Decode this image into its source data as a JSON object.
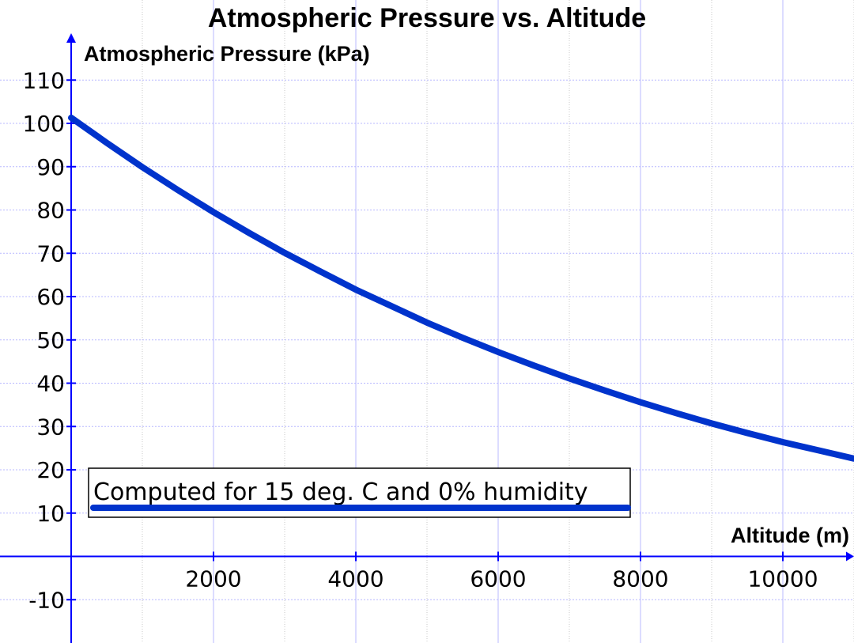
{
  "chart_data": {
    "type": "line",
    "title": "Atmospheric Pressure vs. Altitude",
    "xlabel": "Altitude (m)",
    "ylabel": "Atmospheric Pressure (kPa)",
    "xlim": [
      0,
      11000
    ],
    "ylim": [
      -20,
      120
    ],
    "x_ticks": [
      2000,
      4000,
      6000,
      8000,
      10000
    ],
    "y_ticks": [
      -10,
      10,
      20,
      30,
      40,
      50,
      60,
      70,
      80,
      90,
      100,
      110
    ],
    "grid": true,
    "series": [
      {
        "color": "#0033cc",
        "x": [
          0,
          500,
          1000,
          1500,
          2000,
          2500,
          3000,
          3500,
          4000,
          4500,
          5000,
          5500,
          6000,
          6500,
          7000,
          7500,
          8000,
          8500,
          9000,
          9500,
          10000,
          10500,
          11000
        ],
        "y": [
          101.3,
          95.5,
          89.9,
          84.6,
          79.5,
          74.7,
          70.1,
          65.8,
          61.6,
          57.8,
          54.0,
          50.5,
          47.2,
          44.1,
          41.1,
          38.3,
          35.6,
          33.1,
          30.7,
          28.5,
          26.4,
          24.5,
          22.6
        ]
      }
    ],
    "annotation": {
      "text": "Computed for 15 deg. C and 0% humidity",
      "legend_line_color": "#0033cc"
    }
  },
  "colors": {
    "axis": "#0000ff",
    "grid_major": "#b8b8ff",
    "grid_minor": "#c8c8c8",
    "curve": "#0033cc"
  }
}
